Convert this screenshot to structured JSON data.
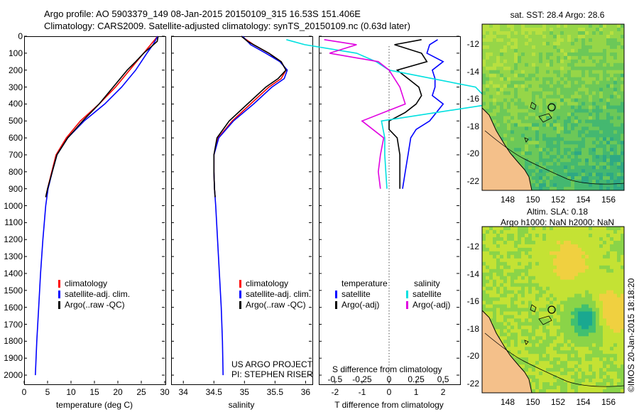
{
  "header": {
    "line1": "Argo profile: AO 5903379_149 08-Jan-2015 20150109_315 16.53S 151.406E",
    "line2": "Climatology: CARS2009. Satellite-adjusted climatology: synTS_20150109.nc (0.63d later)"
  },
  "colors": {
    "climatology": "#ff0000",
    "satellite": "#0000ff",
    "argo": "#000000",
    "sal_satellite": "#00e0e0",
    "sal_argo": "#e000e0"
  },
  "depth_ticks": [
    "0",
    "100",
    "200",
    "300",
    "400",
    "500",
    "600",
    "700",
    "800",
    "900",
    "1000",
    "1100",
    "1200",
    "1300",
    "1400",
    "1500",
    "1600",
    "1700",
    "1800",
    "1900",
    "2000"
  ],
  "temperature_panel": {
    "xlabel": "temperature (deg C)",
    "xticks": [
      "0",
      "5",
      "10",
      "15",
      "20",
      "25",
      "30"
    ],
    "legend": [
      "climatology",
      "satellite-adj. clim.",
      "Argo(..raw -QC)"
    ]
  },
  "salinity_panel": {
    "xlabel": "salinity",
    "xticks": [
      "34",
      "34.5",
      "35",
      "35.5",
      "36"
    ],
    "legend": [
      "climatology",
      "satellite-adj. clim.",
      "Argo(..raw -QC)"
    ],
    "credit1": "US ARGO PROJECT",
    "credit2": "PI: STEPHEN RISER"
  },
  "difference_panel": {
    "title_s": "S difference from climatology",
    "s_ticks": [
      "-0.5",
      "-0.25",
      "0",
      "0.25",
      "0.5"
    ],
    "xticks": [
      "-2",
      "-1",
      "0",
      "1",
      "2"
    ],
    "xlabel": "T difference from climatology",
    "legend_temp_head": "temperature",
    "legend_temp": [
      "satellite",
      "Argo(-adj)"
    ],
    "legend_sal_head": "salinity",
    "legend_sal": [
      "satellite",
      "Argo(-adj)"
    ]
  },
  "map_sst": {
    "title": "sat. SST: 28.4 Argo: 28.6",
    "yticks": [
      "-12",
      "-14",
      "-16",
      "-18",
      "-20",
      "-22"
    ],
    "xticks": [
      "148",
      "150",
      "152",
      "154",
      "156"
    ]
  },
  "map_sla": {
    "title1": "Altim. SLA: 0.18",
    "title2": "Argo h1000: NaN h2000: NaN",
    "yticks": [
      "-12",
      "-14",
      "-16",
      "-18",
      "-20",
      "-22"
    ],
    "xticks": [
      "148",
      "150",
      "152",
      "154",
      "156"
    ]
  },
  "footer_vertical": "©IMOS 20-Jan-2015 18:18:20",
  "chart_data": [
    {
      "type": "line",
      "xlabel": "temperature (deg C)",
      "ylabel": "",
      "xlim": [
        0,
        30
      ],
      "ylim": [
        2050,
        0
      ],
      "series": [
        {
          "name": "climatology",
          "depth": [
            0,
            50,
            100,
            150,
            200,
            300,
            400,
            500,
            600,
            700,
            800,
            900,
            950
          ],
          "values": [
            28.5,
            27.0,
            25.5,
            24.0,
            22.5,
            19.5,
            16.0,
            12.0,
            9.0,
            6.8,
            5.9,
            5.0,
            4.6
          ]
        },
        {
          "name": "satellite-adj. clim.",
          "depth": [
            0,
            50,
            100,
            150,
            200,
            300,
            400,
            500,
            600,
            700,
            800,
            900,
            1000,
            1200,
            1400,
            1600,
            1800,
            2000
          ],
          "values": [
            28.5,
            27.5,
            26.2,
            25.0,
            23.8,
            20.8,
            17.2,
            12.8,
            9.3,
            7.0,
            6.0,
            5.1,
            4.6,
            4.0,
            3.5,
            3.1,
            2.7,
            2.4
          ]
        },
        {
          "name": "Argo(..raw -QC)",
          "depth": [
            0,
            30,
            60,
            100,
            150,
            200,
            300,
            400,
            500,
            600,
            700,
            800,
            900,
            950
          ],
          "values": [
            28.6,
            28.4,
            27.2,
            25.5,
            23.8,
            22.0,
            19.0,
            16.0,
            12.5,
            9.3,
            7.0,
            6.0,
            5.0,
            4.6
          ]
        }
      ]
    },
    {
      "type": "line",
      "xlabel": "salinity",
      "ylabel": "",
      "xlim": [
        33.8,
        36.1
      ],
      "ylim": [
        2050,
        0
      ],
      "series": [
        {
          "name": "climatology",
          "depth": [
            0,
            50,
            100,
            150,
            200,
            250,
            300,
            400,
            500,
            600,
            700,
            800,
            900,
            950
          ],
          "values": [
            34.95,
            35.15,
            35.4,
            35.6,
            35.68,
            35.6,
            35.4,
            35.1,
            34.8,
            34.57,
            34.5,
            34.5,
            34.51,
            34.52
          ]
        },
        {
          "name": "satellite-adj. clim.",
          "depth": [
            0,
            50,
            100,
            150,
            200,
            250,
            300,
            400,
            500,
            600,
            700,
            800,
            900,
            1000,
            1200,
            1400,
            1600,
            1800,
            2000
          ],
          "values": [
            34.97,
            35.1,
            35.35,
            35.58,
            35.7,
            35.65,
            35.45,
            35.15,
            34.82,
            34.58,
            34.5,
            34.5,
            34.51,
            34.53,
            34.56,
            34.59,
            34.62,
            34.64,
            34.65
          ]
        },
        {
          "name": "Argo(..raw -QC)",
          "depth": [
            0,
            30,
            60,
            100,
            150,
            200,
            250,
            300,
            400,
            500,
            600,
            700,
            800,
            900,
            950
          ],
          "values": [
            34.95,
            35.05,
            35.2,
            35.4,
            35.6,
            35.68,
            35.55,
            35.35,
            35.05,
            34.75,
            34.55,
            34.5,
            34.5,
            34.51,
            34.52
          ]
        }
      ]
    },
    {
      "type": "line",
      "xlabel": "T difference from climatology",
      "xlim": [
        -2.6,
        2.6
      ],
      "ylim": [
        2050,
        0
      ],
      "series": [
        {
          "name": "satellite",
          "depth": [
            20,
            50,
            100,
            150,
            200,
            250,
            300,
            350,
            400,
            500,
            550,
            600,
            700,
            800,
            900
          ],
          "values": [
            1.8,
            1.5,
            1.4,
            2.0,
            1.6,
            1.7,
            1.7,
            1.6,
            2.0,
            1.5,
            1.0,
            0.8,
            0.7,
            0.6,
            0.5
          ]
        },
        {
          "name": "Argo(-adj)",
          "depth": [
            20,
            50,
            100,
            150,
            200,
            250,
            300,
            350,
            400,
            450,
            500,
            550,
            600,
            700,
            800,
            900
          ],
          "values": [
            1.2,
            0.2,
            1.2,
            1.4,
            0.3,
            0.7,
            1.1,
            1.2,
            1.0,
            0.6,
            0.0,
            0.0,
            0.3,
            0.4,
            0.4,
            0.4
          ]
        },
        {
          "name": "salinity satellite",
          "depth": [
            20,
            50,
            100,
            150,
            200,
            300,
            400,
            500,
            600,
            700,
            800,
            900
          ],
          "values": [
            -0.95,
            -0.78,
            -0.3,
            -0.12,
            0.0,
            0.8,
            0.95,
            -0.07,
            -0.04,
            -0.04,
            -0.03,
            -0.02
          ]
        },
        {
          "name": "salinity Argo(-adj)",
          "depth": [
            20,
            50,
            100,
            150,
            200,
            300,
            400,
            500,
            600,
            700,
            800,
            900
          ],
          "values": [
            -0.6,
            -0.3,
            -0.55,
            -0.1,
            0.0,
            0.1,
            0.15,
            -0.25,
            -0.05,
            -0.08,
            -0.1,
            -0.08
          ]
        }
      ]
    }
  ]
}
